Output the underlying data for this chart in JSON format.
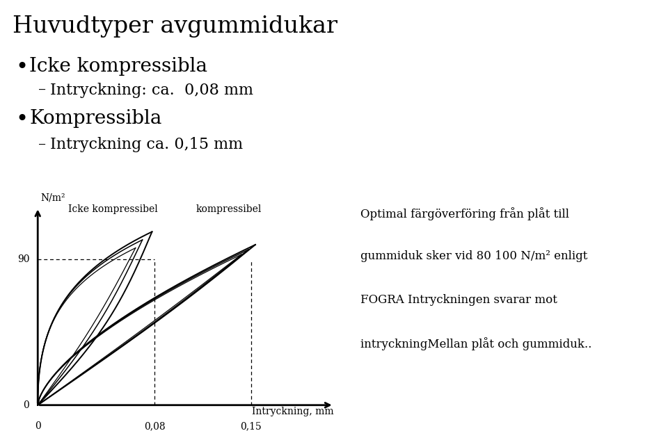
{
  "title": "Huvudtyper avgummidukar",
  "bullet1": "Icke kompressibla",
  "sub1": "Intryckning: ca.  0,08 mm",
  "bullet2": "Kompressibla",
  "sub2": "Intryckning ca. 0,15 mm",
  "ylabel": "N/m²",
  "xlabel": "Intryckning, mm",
  "label_icke": "Icke kompressibel",
  "label_komp": "kompressibel",
  "note_line1": "Optimal färgöverföring från plåt till",
  "note_line2": "gummiduk sker vid 80 100 N/m² enligt",
  "note_line3": "FOGRA Intryckningen svarar mot",
  "note_line4": "intryckningMellan plåt och gummiduk..",
  "bg_color": "#ffffff",
  "text_color": "#000000"
}
